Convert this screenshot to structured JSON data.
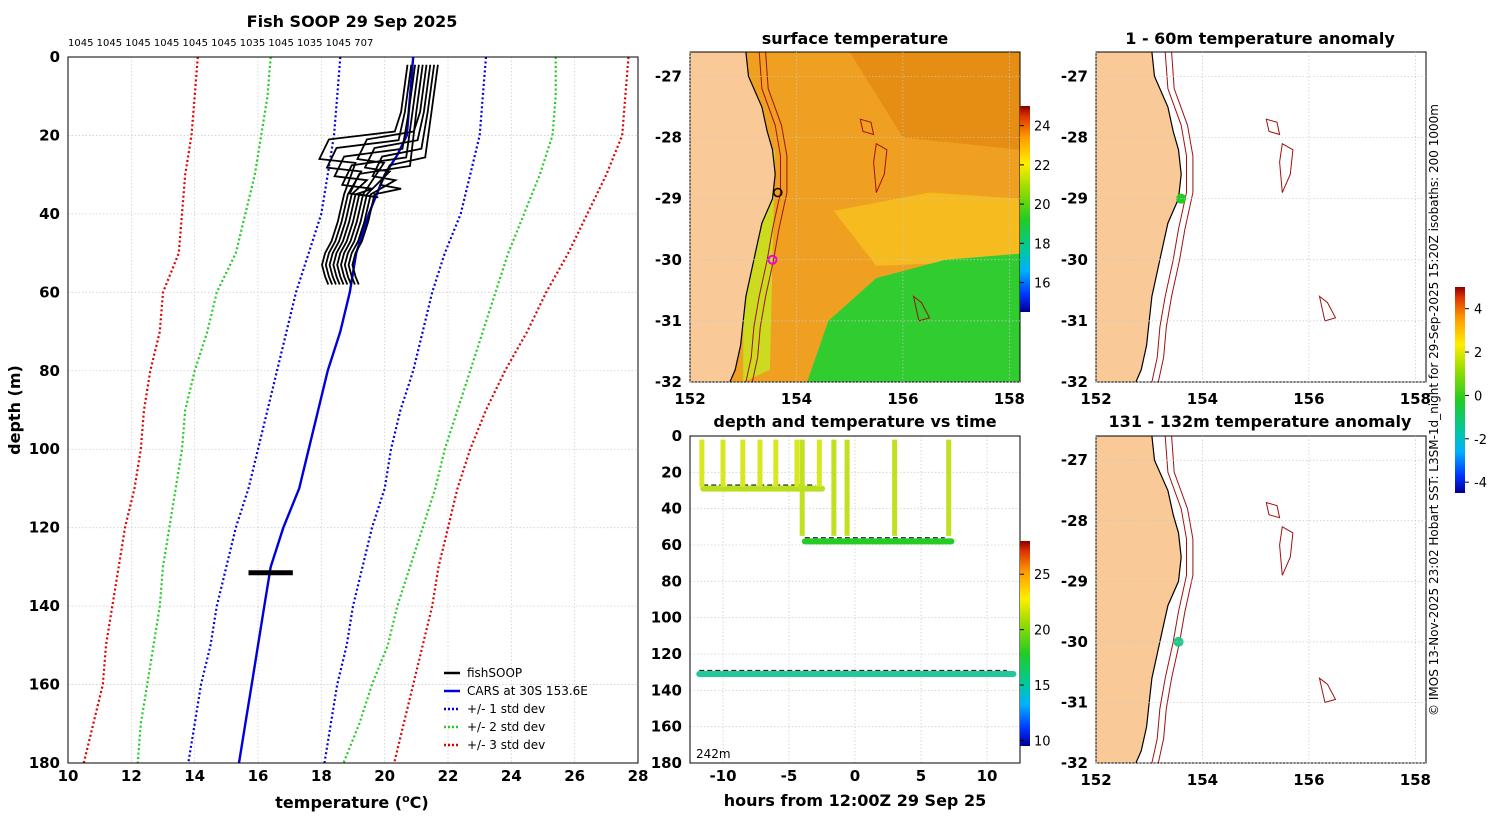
{
  "chart_data": [
    {
      "type": "line",
      "title": "Fish SOOP 29 Sep 2025",
      "xlabel": "temperature (",
      "xlabel_sup": "o",
      "xlabel_end": "C)",
      "ylabel": "depth (m)",
      "xlim": [
        10,
        28
      ],
      "ylim": [
        0,
        180
      ],
      "xticks": [
        10,
        12,
        14,
        16,
        18,
        20,
        22,
        24,
        26,
        28
      ],
      "yticks": [
        0,
        20,
        40,
        60,
        80,
        100,
        120,
        140,
        160,
        180
      ],
      "top_labels": "1045 1045 1045 1045 1045 1045 1035 1045 1035 1045 707",
      "legend": [
        {
          "label": "fishSOOP",
          "color": "#000000",
          "style": "solid"
        },
        {
          "label": "CARS at 30S 153.6E",
          "color": "#0000dd",
          "style": "solid"
        },
        {
          "label": "+/- 1 std dev",
          "color": "#0000dd",
          "style": "dotted"
        },
        {
          "label": "+/- 2 std dev",
          "color": "#22cc22",
          "style": "dotted"
        },
        {
          "label": "+/- 3 std dev",
          "color": "#dd0000",
          "style": "dotted"
        }
      ],
      "series": [
        {
          "name": "CARS mean",
          "depth": [
            0,
            10,
            20,
            25,
            30,
            40,
            50,
            60,
            70,
            80,
            90,
            100,
            110,
            120,
            130,
            140,
            150,
            160,
            170,
            180
          ],
          "temp": [
            20.9,
            20.8,
            20.7,
            20.4,
            20.0,
            19.5,
            19.1,
            18.9,
            18.6,
            18.2,
            17.9,
            17.6,
            17.3,
            16.8,
            16.4,
            16.2,
            16.0,
            15.8,
            15.6,
            15.4
          ]
        },
        {
          "name": "-1 std",
          "depth": [
            0,
            10,
            20,
            30,
            40,
            50,
            60,
            70,
            80,
            90,
            100,
            110,
            120,
            130,
            140,
            150,
            160,
            170,
            180
          ],
          "temp": [
            18.6,
            18.5,
            18.4,
            18.2,
            18.0,
            17.6,
            17.2,
            16.9,
            16.6,
            16.3,
            16.0,
            15.7,
            15.3,
            15.0,
            14.7,
            14.5,
            14.2,
            14.0,
            13.8
          ]
        },
        {
          "name": "+1 std",
          "depth": [
            0,
            10,
            20,
            30,
            40,
            50,
            60,
            70,
            80,
            90,
            100,
            110,
            120,
            130,
            140,
            150,
            160,
            170,
            180
          ],
          "temp": [
            23.2,
            23.1,
            23.0,
            22.7,
            22.4,
            21.9,
            21.5,
            21.2,
            20.9,
            20.5,
            20.2,
            20.0,
            19.6,
            19.3,
            19.0,
            18.8,
            18.5,
            18.3,
            18.1
          ]
        },
        {
          "name": "-2 std",
          "depth": [
            0,
            10,
            20,
            30,
            40,
            50,
            60,
            70,
            80,
            90,
            100,
            110,
            120,
            130,
            140,
            150,
            160,
            170,
            180
          ],
          "temp": [
            16.4,
            16.3,
            16.1,
            15.9,
            15.6,
            15.3,
            14.7,
            14.4,
            14.0,
            13.7,
            13.6,
            13.4,
            13.2,
            13.0,
            12.9,
            12.7,
            12.5,
            12.3,
            12.2
          ]
        },
        {
          "name": "+2 std",
          "depth": [
            0,
            10,
            20,
            30,
            40,
            50,
            60,
            70,
            80,
            90,
            100,
            110,
            120,
            130,
            140,
            150,
            160,
            170,
            180
          ],
          "temp": [
            25.4,
            25.4,
            25.3,
            24.9,
            24.4,
            23.9,
            23.5,
            23.1,
            22.7,
            22.3,
            21.9,
            21.6,
            21.2,
            20.8,
            20.4,
            20.1,
            19.6,
            19.2,
            18.7
          ]
        },
        {
          "name": "-3 std",
          "depth": [
            0,
            10,
            20,
            30,
            40,
            50,
            60,
            70,
            80,
            90,
            100,
            110,
            120,
            130,
            140,
            150,
            160,
            170,
            180
          ],
          "temp": [
            14.1,
            14.0,
            13.9,
            13.7,
            13.6,
            13.5,
            13.0,
            12.9,
            12.6,
            12.4,
            12.3,
            12.1,
            11.8,
            11.6,
            11.4,
            11.2,
            11.1,
            10.8,
            10.5
          ]
        },
        {
          "name": "+3 std",
          "depth": [
            0,
            10,
            20,
            30,
            40,
            50,
            60,
            70,
            80,
            90,
            100,
            110,
            120,
            130,
            140,
            150,
            160,
            170,
            180
          ],
          "temp": [
            27.7,
            27.6,
            27.5,
            27.0,
            26.4,
            25.8,
            25.1,
            24.5,
            23.8,
            23.2,
            22.7,
            22.3,
            22.0,
            21.7,
            21.5,
            21.2,
            20.9,
            20.6,
            20.3
          ]
        }
      ]
    },
    {
      "type": "heatmap",
      "title": "surface temperature",
      "xlim": [
        152,
        158.2
      ],
      "ylim": [
        -32,
        -26.6
      ],
      "xticks": [
        152,
        154,
        156,
        158
      ],
      "yticks": [
        -27,
        -28,
        -29,
        -30,
        -31,
        -32
      ],
      "colorbar_ticks": [
        16,
        18,
        20,
        22,
        24
      ],
      "colorbar_range": [
        14.5,
        25
      ]
    },
    {
      "type": "scatter",
      "title": "depth and temperature vs time",
      "xlabel": "hours from 12:00Z 29 Sep 25",
      "xlim": [
        -12.5,
        12.5
      ],
      "ylim": [
        0,
        180
      ],
      "xticks": [
        -10,
        -5,
        0,
        5,
        10
      ],
      "yticks": [
        0,
        20,
        40,
        60,
        80,
        100,
        120,
        140,
        160,
        180
      ],
      "colorbar_ticks": [
        10,
        15,
        20,
        25
      ],
      "colorbar_range": [
        9.5,
        28
      ],
      "annotation": "242m",
      "tracks": [
        {
          "name": "shallow trap",
          "t_start": -11.5,
          "t_end": -2.5,
          "depth": 29,
          "temp": 23
        },
        {
          "name": "mid trap",
          "t_start": -3.8,
          "t_end": 7.3,
          "depth": 58,
          "temp": 19
        },
        {
          "name": "deep trap",
          "t_start": -11.8,
          "t_end": 12.0,
          "depth": 131,
          "temp": 16.5
        }
      ]
    },
    {
      "type": "scatter",
      "title": "1 - 60m temperature anomaly",
      "xlim": [
        152,
        158.2
      ],
      "ylim": [
        -32,
        -26.6
      ],
      "xticks": [
        152,
        154,
        156,
        158
      ],
      "yticks": [
        -27,
        -28,
        -29,
        -30,
        -31,
        -32
      ],
      "colorbar_ticks": [
        4,
        2,
        0,
        -2,
        -4
      ],
      "colorbar_range": [
        -4.5,
        5
      ],
      "points": [
        {
          "lon": 153.6,
          "lat": -29.0,
          "anomaly": 0.8
        }
      ]
    },
    {
      "type": "scatter",
      "title": "131 - 132m temperature anomaly",
      "xlim": [
        152,
        158.2
      ],
      "ylim": [
        -32,
        -26.6
      ],
      "xticks": [
        152,
        154,
        156,
        158
      ],
      "yticks": [
        -27,
        -28,
        -29,
        -30,
        -31,
        -32
      ],
      "points": [
        {
          "lon": 153.55,
          "lat": -30.0,
          "anomaly": -0.5
        }
      ]
    }
  ],
  "side_text": "© IMOS 13-Nov-2025 23:02 Hobart SST: L3SM-1d_night for 29-Sep-2025 15:20Z isobaths: 200  1000m"
}
